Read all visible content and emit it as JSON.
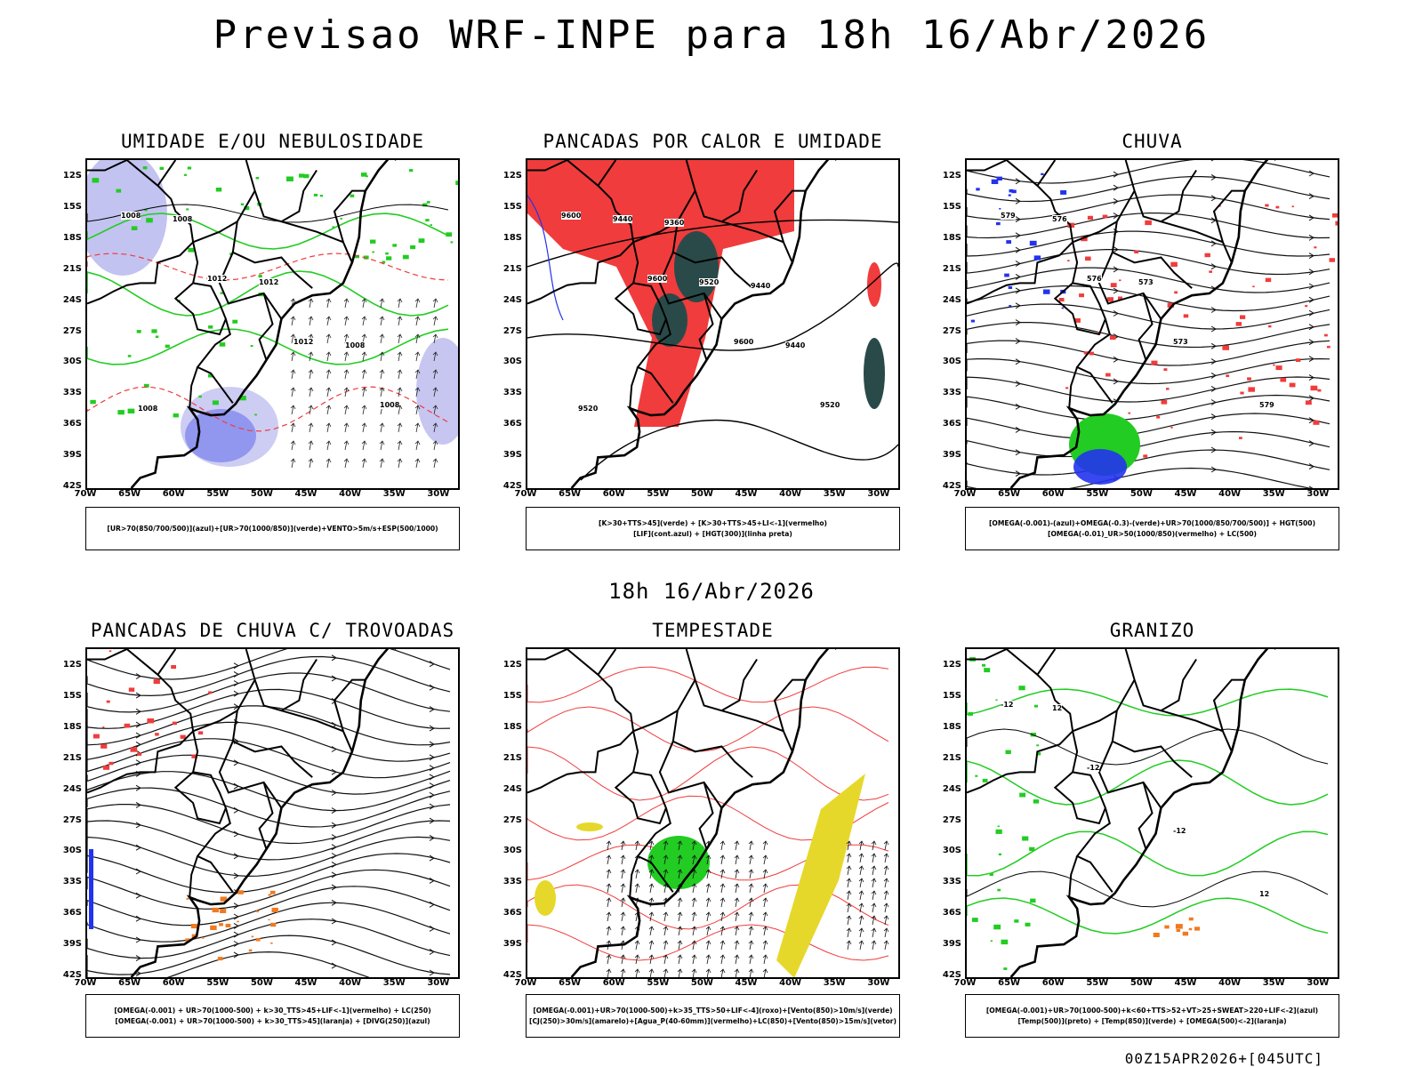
{
  "header": {
    "title": "Previsao WRF-INPE  para 18h 16/Abr/2026",
    "mid_timestamp": "18h 16/Abr/2026",
    "footer": "00Z15APR2026+[045UTC]"
  },
  "axes": {
    "lat_labels": [
      "12S",
      "15S",
      "18S",
      "21S",
      "24S",
      "27S",
      "30S",
      "33S",
      "36S",
      "39S",
      "42S"
    ],
    "lon_labels": [
      "70W",
      "65W",
      "60W",
      "55W",
      "50W",
      "45W",
      "40W",
      "35W",
      "30W"
    ]
  },
  "colors": {
    "red": "#f03c3c",
    "green": "#22cc22",
    "blue": "#2233ee",
    "lavender": "#b8b8ee",
    "darkteal": "#2a4a4a",
    "orange": "#f07a20",
    "yellow": "#e6d82a"
  },
  "panels": [
    {
      "id": "umidade",
      "title": "UMIDADE E/OU NEBULOSIDADE",
      "legend": [
        "[UR>70(850/700/500)](azul)+[UR>70(1000/850)](verde)+VENTO>5m/s+ESP(500/1000)"
      ],
      "contour_labels": [
        "1008",
        "1012",
        "1012",
        "1008",
        "1008",
        "1012",
        "1008",
        "1008"
      ]
    },
    {
      "id": "pancadas-calor",
      "title": "PANCADAS POR CALOR E UMIDADE",
      "legend": [
        "[K>30+TTS>45](verde) + [K>30+TTS>45+LI<-1](vermelho)",
        "[LIF](cont.azul) + [HGT(300)](linha preta)"
      ],
      "contour_labels": [
        "9600",
        "9600",
        "9600",
        "9520",
        "9440",
        "9520",
        "9440",
        "9520",
        "9360",
        "9440"
      ]
    },
    {
      "id": "chuva",
      "title": "CHUVA",
      "legend": [
        "[OMEGA(-0.001)-(azul)+OMEGA(-0.3)-(verde)+UR>70(1000/850/700/500)] + HGT(500)",
        "[OMEGA(-0.01)_UR>50(1000/850)(vermelho) + LC(500)"
      ],
      "contour_labels": [
        "579",
        "576",
        "573",
        "579",
        "576",
        "573"
      ]
    },
    {
      "id": "trovoadas",
      "title": "PANCADAS DE CHUVA C/ TROVOADAS",
      "legend": [
        "[OMEGA(-0.001) + UR>70(1000-500) + k>30_TTS>45+LIF<-1](vermelho) + LC(250)",
        "[OMEGA(-0.001) + UR>70(1000-500) + k>30_TTS>45](laranja) + [DIVG(250)](azul)"
      ],
      "contour_labels": []
    },
    {
      "id": "tempestade",
      "title": "TEMPESTADE",
      "legend": [
        "[OMEGA(-0.001)+UR>70(1000-500)+k>35_TTS>50+LIF<-4](roxo)+[Vento(850)>10m/s](verde)",
        "[CJ(250)>30m/s](amarelo)+[Agua_P(40-60mm)](vermelho)+LC(850)+[Vento(850)>15m/s](vetor)"
      ],
      "contour_labels": []
    },
    {
      "id": "granizo",
      "title": "GRANIZO",
      "legend": [
        "[OMEGA(-0.001)+UR>70(1000-500)+k<60+TTS>52+VT>25+SWEAT>220+LIF<-2](azul)",
        "[Temp(500)](preto) + [Temp(850)](verde) + [OMEGA(500)<-2](laranja)"
      ],
      "contour_labels": [
        "-12",
        "-12",
        "-12",
        "12",
        "12"
      ]
    }
  ]
}
